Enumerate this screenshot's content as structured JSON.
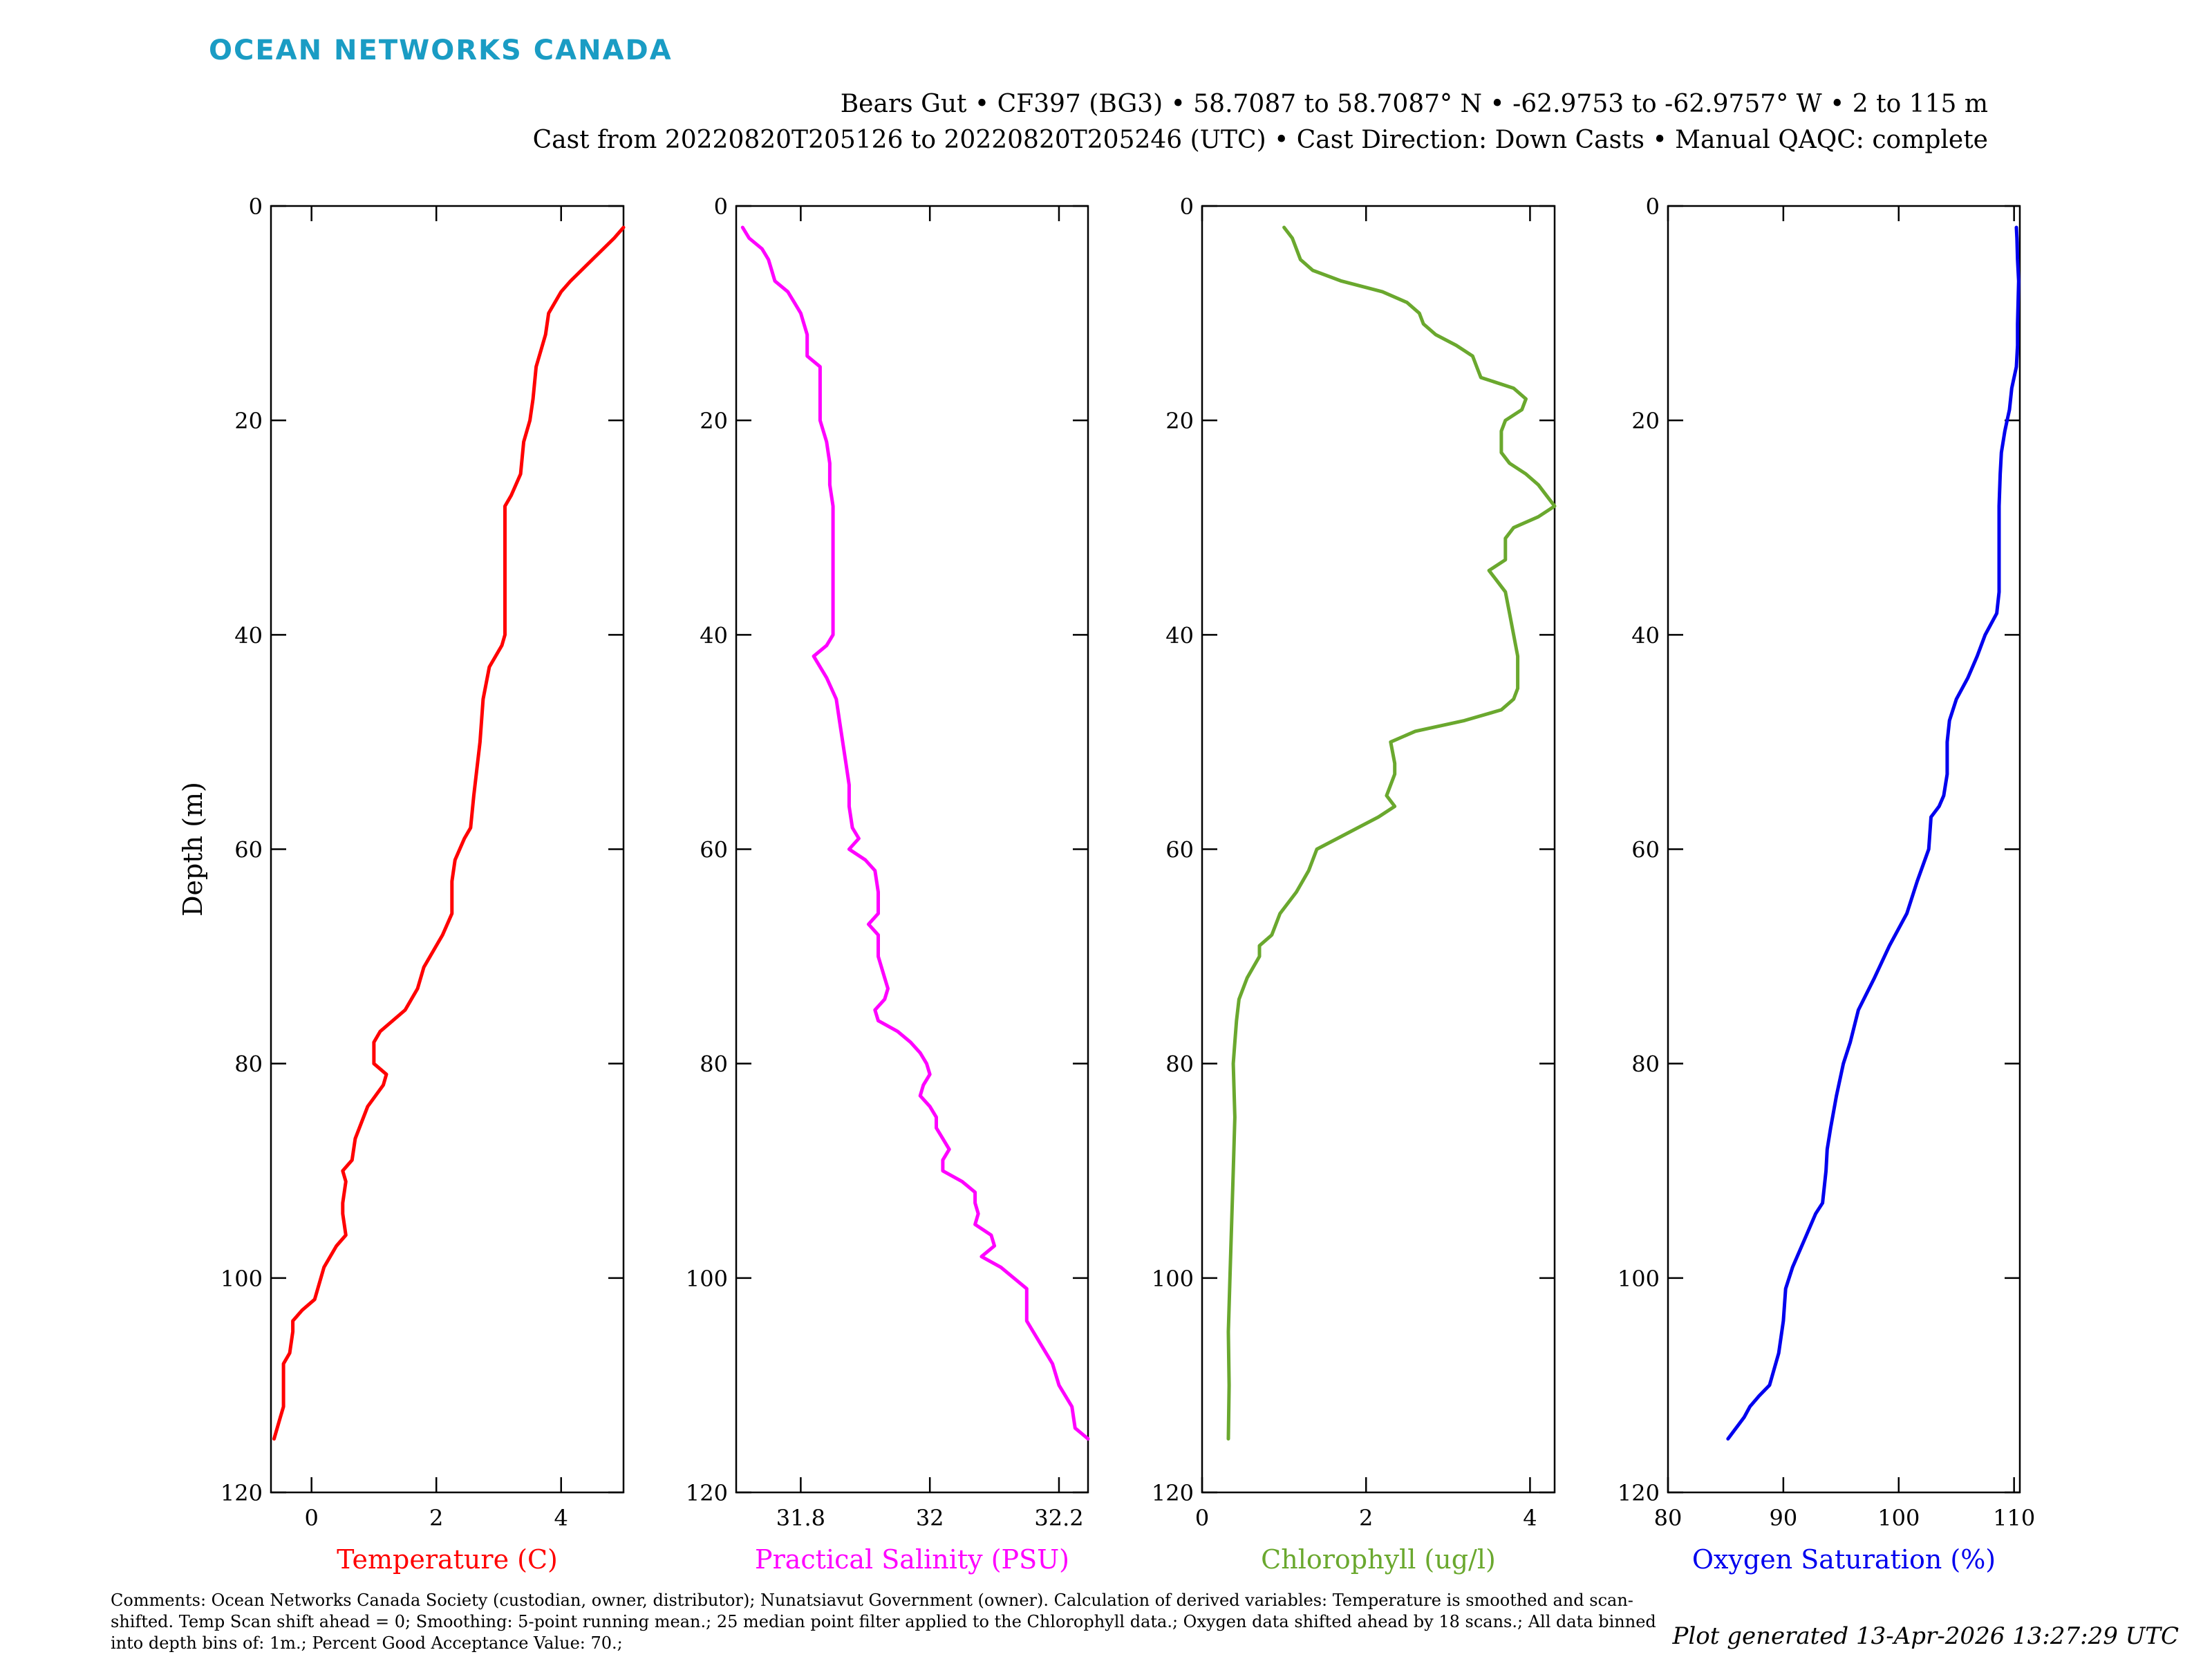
{
  "header": {
    "brand": "OCEAN NETWORKS CANADA",
    "title_line1": "Bears Gut • CF397 (BG3) • 58.7087 to 58.7087° N • -62.9753 to -62.9757° W • 2 to 115 m",
    "title_line2": "Cast from 20220820T205126 to 20220820T205246 (UTC) • Cast Direction: Down Casts • Manual QAQC: complete"
  },
  "footer": {
    "comments": "Comments: Ocean Networks Canada Society (custodian, owner, distributor); Nunatsiavut Government (owner). Calculation of derived variables: Temperature is smoothed and scan-shifted. Temp Scan shift ahead = 0; Smoothing: 5-point running mean.; 25 median point filter applied to the Chlorophyll data.; Oxygen data shifted ahead by 18 scans.; All data binned into depth bins of: 1m.; Percent Good Acceptance Value: 70.;",
    "generated": "Plot generated 13-Apr-2026 13:27:29 UTC"
  },
  "chart_data": [
    {
      "type": "line",
      "title": "",
      "xlabel": "Temperature (C)",
      "ylabel": "Depth (m)",
      "color": "#ff0000",
      "xlim": [
        -0.65,
        5
      ],
      "ylim": [
        0,
        120
      ],
      "xticks": [
        0,
        2,
        4
      ],
      "yticks": [
        0,
        20,
        40,
        60,
        80,
        100,
        120
      ],
      "depth": [
        2,
        3,
        5,
        7,
        8,
        10,
        12,
        15,
        18,
        20,
        22,
        25,
        27,
        28,
        30,
        35,
        40,
        41,
        43,
        46,
        50,
        55,
        58,
        59,
        61,
        63,
        66,
        68,
        70,
        71,
        73,
        75,
        77,
        78,
        80,
        81,
        82,
        84,
        87,
        89,
        90,
        91,
        93,
        94,
        96,
        97,
        99,
        100,
        102,
        103,
        104,
        105,
        107,
        108,
        112,
        113,
        114,
        115
      ],
      "values": [
        5.0,
        4.85,
        4.5,
        4.15,
        4.0,
        3.8,
        3.75,
        3.6,
        3.55,
        3.5,
        3.4,
        3.35,
        3.2,
        3.1,
        3.1,
        3.1,
        3.1,
        3.05,
        2.85,
        2.75,
        2.7,
        2.6,
        2.55,
        2.45,
        2.3,
        2.25,
        2.25,
        2.1,
        1.9,
        1.8,
        1.7,
        1.5,
        1.1,
        1.0,
        1.0,
        1.2,
        1.15,
        0.9,
        0.7,
        0.65,
        0.5,
        0.55,
        0.5,
        0.5,
        0.55,
        0.4,
        0.2,
        0.15,
        0.05,
        -0.15,
        -0.3,
        -0.3,
        -0.35,
        -0.45,
        -0.45,
        -0.5,
        -0.55,
        -0.6
      ]
    },
    {
      "type": "line",
      "title": "",
      "xlabel": "Practical Salinity (PSU)",
      "ylabel": "",
      "color": "#ff00ff",
      "xlim": [
        31.7,
        32.245
      ],
      "ylim": [
        0,
        120
      ],
      "xticks": [
        31.8,
        32,
        32.2
      ],
      "yticks": [
        0,
        20,
        40,
        60,
        80,
        100,
        120
      ],
      "depth": [
        2,
        3,
        4,
        5,
        6,
        7,
        8,
        9,
        10,
        12,
        14,
        15,
        16,
        18,
        20,
        22,
        24,
        26,
        28,
        30,
        35,
        40,
        41,
        42,
        44,
        46,
        48,
        50,
        52,
        54,
        56,
        58,
        59,
        60,
        61,
        62,
        64,
        66,
        67,
        68,
        70,
        72,
        73,
        74,
        75,
        76,
        77,
        78,
        79,
        80,
        81,
        82,
        83,
        84,
        85,
        86,
        87,
        88,
        89,
        90,
        91,
        92,
        93,
        94,
        95,
        96,
        97,
        98,
        99,
        100,
        101,
        103,
        104,
        105,
        106,
        108,
        110,
        112,
        114,
        115
      ],
      "values": [
        31.71,
        31.72,
        31.74,
        31.75,
        31.755,
        31.76,
        31.78,
        31.79,
        31.8,
        31.81,
        31.81,
        31.83,
        31.83,
        31.83,
        31.83,
        31.84,
        31.845,
        31.845,
        31.85,
        31.85,
        31.85,
        31.85,
        31.84,
        31.82,
        31.84,
        31.855,
        31.86,
        31.865,
        31.87,
        31.875,
        31.875,
        31.88,
        31.89,
        31.875,
        31.9,
        31.915,
        31.92,
        31.92,
        31.905,
        31.92,
        31.92,
        31.93,
        31.935,
        31.93,
        31.915,
        31.92,
        31.95,
        31.97,
        31.985,
        31.995,
        32.0,
        31.99,
        31.985,
        32.0,
        32.01,
        32.01,
        32.02,
        32.03,
        32.02,
        32.02,
        32.05,
        32.07,
        32.07,
        32.075,
        32.07,
        32.095,
        32.1,
        32.08,
        32.11,
        32.13,
        32.15,
        32.15,
        32.15,
        32.16,
        32.17,
        32.19,
        32.2,
        32.22,
        32.225,
        32.245
      ]
    },
    {
      "type": "line",
      "title": "",
      "xlabel": "Chlorophyll (ug/l)",
      "ylabel": "",
      "color": "#6aa82e",
      "xlim": [
        0,
        4.3
      ],
      "ylim": [
        0,
        120
      ],
      "xticks": [
        0,
        2,
        4
      ],
      "yticks": [
        0,
        20,
        40,
        60,
        80,
        100,
        120
      ],
      "depth": [
        2,
        3,
        4,
        5,
        6,
        7,
        8,
        9,
        10,
        11,
        12,
        13,
        14,
        15,
        16,
        17,
        18,
        19,
        20,
        21,
        22,
        23,
        24,
        25,
        26,
        27,
        28,
        29,
        30,
        31,
        33,
        34,
        35,
        36,
        38,
        40,
        42,
        44,
        45,
        46,
        47,
        48,
        49,
        50,
        52,
        53,
        55,
        56,
        57,
        58,
        59,
        60,
        61,
        62,
        64,
        66,
        68,
        69,
        70,
        72,
        73,
        74,
        76,
        78,
        80,
        85,
        90,
        95,
        100,
        105,
        110,
        115
      ],
      "values": [
        1.0,
        1.1,
        1.15,
        1.2,
        1.35,
        1.7,
        2.2,
        2.5,
        2.65,
        2.7,
        2.85,
        3.1,
        3.3,
        3.35,
        3.4,
        3.8,
        3.95,
        3.9,
        3.7,
        3.65,
        3.65,
        3.65,
        3.75,
        3.95,
        4.1,
        4.2,
        4.3,
        4.1,
        3.8,
        3.7,
        3.7,
        3.5,
        3.6,
        3.7,
        3.75,
        3.8,
        3.85,
        3.85,
        3.85,
        3.8,
        3.65,
        3.2,
        2.6,
        2.3,
        2.35,
        2.35,
        2.25,
        2.35,
        2.15,
        1.9,
        1.65,
        1.4,
        1.35,
        1.3,
        1.15,
        0.95,
        0.85,
        0.7,
        0.7,
        0.55,
        0.5,
        0.45,
        0.42,
        0.4,
        0.38,
        0.4,
        0.38,
        0.36,
        0.34,
        0.32,
        0.33,
        0.32
      ]
    },
    {
      "type": "line",
      "title": "",
      "xlabel": "Oxygen Saturation (%)",
      "ylabel": "",
      "color": "#0000ee",
      "xlim": [
        80,
        110.5
      ],
      "ylim": [
        0,
        120
      ],
      "xticks": [
        80,
        90,
        100,
        110
      ],
      "yticks": [
        0,
        20,
        40,
        60,
        80,
        100,
        120
      ],
      "depth": [
        2,
        3,
        5,
        7,
        9,
        11,
        13,
        15,
        17,
        19,
        20,
        21,
        23,
        25,
        28,
        30,
        33,
        36,
        38,
        40,
        42,
        44,
        46,
        48,
        50,
        53,
        55,
        56,
        57,
        60,
        63,
        66,
        69,
        72,
        75,
        78,
        80,
        83,
        86,
        88,
        90,
        93,
        94,
        96,
        99,
        101,
        104,
        107,
        110,
        111,
        112,
        113,
        115
      ],
      "values": [
        110.2,
        110.25,
        110.3,
        110.4,
        110.35,
        110.3,
        110.3,
        110.2,
        109.8,
        109.6,
        109.4,
        109.2,
        108.9,
        108.8,
        108.7,
        108.7,
        108.7,
        108.7,
        108.5,
        107.5,
        106.8,
        106.0,
        105.0,
        104.4,
        104.2,
        104.2,
        103.9,
        103.5,
        102.8,
        102.6,
        101.6,
        100.7,
        99.2,
        97.9,
        96.5,
        95.8,
        95.2,
        94.6,
        94.1,
        93.8,
        93.7,
        93.4,
        92.8,
        92.0,
        90.8,
        90.2,
        90.0,
        89.6,
        88.8,
        87.9,
        87.1,
        86.6,
        85.2
      ]
    }
  ]
}
